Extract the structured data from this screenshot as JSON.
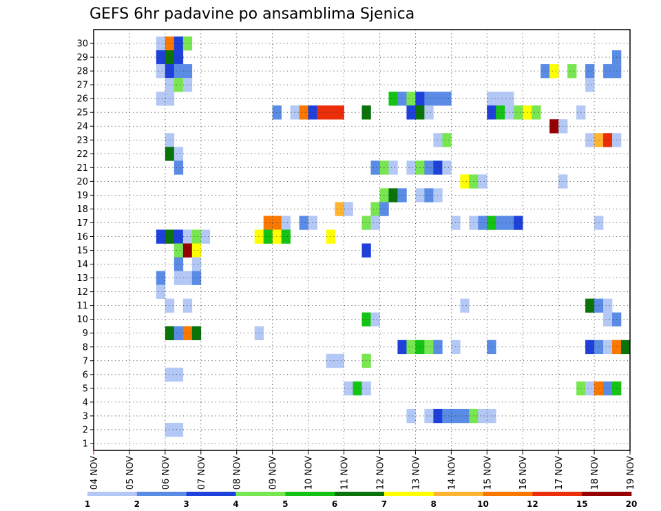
{
  "chart_data": {
    "type": "heatmap",
    "title": "GEFS 6hr padavine po ansamblima Sjenica",
    "xlabel": "",
    "ylabel": "",
    "grid": true,
    "legend_placement": "bottom",
    "x_ticks": [
      "04 NOV",
      "05 NOV",
      "06 NOV",
      "07 NOV",
      "08 NOV",
      "09 NOV",
      "10 NOV",
      "11 NOV",
      "12 NOV",
      "13 NOV",
      "14 NOV",
      "15 NOV",
      "16 NOV",
      "17 NOV",
      "18 NOV",
      "19 NOV"
    ],
    "y_ticks": [
      "1",
      "2",
      "3",
      "4",
      "5",
      "6",
      "7",
      "8",
      "9",
      "10",
      "11",
      "12",
      "13",
      "14",
      "15",
      "16",
      "17",
      "18",
      "19",
      "20",
      "21",
      "22",
      "23",
      "24",
      "25",
      "26",
      "27",
      "28",
      "29",
      "30"
    ],
    "steps_per_day": 4,
    "step_hours": 6,
    "colorbar": {
      "labels": [
        "1",
        "2",
        "3",
        "4",
        "5",
        "6",
        "7",
        "8",
        "10",
        "12",
        "15",
        "20"
      ],
      "colors": [
        "#b4c8f5",
        "#5a8ce6",
        "#1e41dc",
        "#78e650",
        "#14c314",
        "#0a730a",
        "#ffff00",
        "#ffb432",
        "#fa7800",
        "#eb2d0a",
        "#960000"
      ]
    },
    "cells": [
      {
        "m": 30,
        "s": 8,
        "c": 1
      },
      {
        "m": 30,
        "s": 9,
        "c": 9
      },
      {
        "m": 30,
        "s": 10,
        "c": 3
      },
      {
        "m": 30,
        "s": 11,
        "c": 4
      },
      {
        "m": 29,
        "s": 8,
        "c": 3
      },
      {
        "m": 29,
        "s": 9,
        "c": 6
      },
      {
        "m": 29,
        "s": 10,
        "c": 3
      },
      {
        "m": 29,
        "s": 59,
        "c": 2
      },
      {
        "m": 28,
        "s": 8,
        "c": 1
      },
      {
        "m": 28,
        "s": 9,
        "c": 3
      },
      {
        "m": 28,
        "s": 10,
        "c": 2
      },
      {
        "m": 28,
        "s": 11,
        "c": 2
      },
      {
        "m": 28,
        "s": 51,
        "c": 2
      },
      {
        "m": 28,
        "s": 52,
        "c": 7
      },
      {
        "m": 28,
        "s": 54,
        "c": 4
      },
      {
        "m": 28,
        "s": 56,
        "c": 2
      },
      {
        "m": 28,
        "s": 58,
        "c": 2
      },
      {
        "m": 28,
        "s": 59,
        "c": 2
      },
      {
        "m": 27,
        "s": 9,
        "c": 1
      },
      {
        "m": 27,
        "s": 10,
        "c": 4
      },
      {
        "m": 27,
        "s": 11,
        "c": 1
      },
      {
        "m": 27,
        "s": 56,
        "c": 1
      },
      {
        "m": 26,
        "s": 8,
        "c": 1
      },
      {
        "m": 26,
        "s": 9,
        "c": 1
      },
      {
        "m": 26,
        "s": 34,
        "c": 5
      },
      {
        "m": 26,
        "s": 35,
        "c": 2
      },
      {
        "m": 26,
        "s": 36,
        "c": 4
      },
      {
        "m": 26,
        "s": 37,
        "c": 3
      },
      {
        "m": 26,
        "s": 38,
        "c": 2
      },
      {
        "m": 26,
        "s": 39,
        "c": 2
      },
      {
        "m": 26,
        "s": 40,
        "c": 2
      },
      {
        "m": 26,
        "s": 45,
        "c": 1
      },
      {
        "m": 26,
        "s": 46,
        "c": 1
      },
      {
        "m": 26,
        "s": 47,
        "c": 1
      },
      {
        "m": 25,
        "s": 21,
        "c": 2
      },
      {
        "m": 25,
        "s": 23,
        "c": 1
      },
      {
        "m": 25,
        "s": 24,
        "c": 9
      },
      {
        "m": 25,
        "s": 25,
        "c": 3
      },
      {
        "m": 25,
        "s": 26,
        "c": 10
      },
      {
        "m": 25,
        "s": 27,
        "c": 10
      },
      {
        "m": 25,
        "s": 28,
        "c": 10
      },
      {
        "m": 25,
        "s": 31,
        "c": 6
      },
      {
        "m": 25,
        "s": 36,
        "c": 3
      },
      {
        "m": 25,
        "s": 37,
        "c": 6
      },
      {
        "m": 25,
        "s": 38,
        "c": 1
      },
      {
        "m": 25,
        "s": 45,
        "c": 3
      },
      {
        "m": 25,
        "s": 46,
        "c": 5
      },
      {
        "m": 25,
        "s": 47,
        "c": 1
      },
      {
        "m": 25,
        "s": 48,
        "c": 4
      },
      {
        "m": 25,
        "s": 49,
        "c": 7
      },
      {
        "m": 25,
        "s": 50,
        "c": 4
      },
      {
        "m": 25,
        "s": 55,
        "c": 1
      },
      {
        "m": 24,
        "s": 52,
        "c": 11
      },
      {
        "m": 24,
        "s": 53,
        "c": 1
      },
      {
        "m": 23,
        "s": 9,
        "c": 1
      },
      {
        "m": 23,
        "s": 39,
        "c": 1
      },
      {
        "m": 23,
        "s": 40,
        "c": 4
      },
      {
        "m": 23,
        "s": 56,
        "c": 1
      },
      {
        "m": 23,
        "s": 57,
        "c": 8
      },
      {
        "m": 23,
        "s": 58,
        "c": 10
      },
      {
        "m": 23,
        "s": 59,
        "c": 1
      },
      {
        "m": 22,
        "s": 9,
        "c": 6
      },
      {
        "m": 22,
        "s": 10,
        "c": 1
      },
      {
        "m": 21,
        "s": 10,
        "c": 2
      },
      {
        "m": 21,
        "s": 32,
        "c": 2
      },
      {
        "m": 21,
        "s": 33,
        "c": 4
      },
      {
        "m": 21,
        "s": 34,
        "c": 1
      },
      {
        "m": 21,
        "s": 36,
        "c": 1
      },
      {
        "m": 21,
        "s": 37,
        "c": 4
      },
      {
        "m": 21,
        "s": 38,
        "c": 2
      },
      {
        "m": 21,
        "s": 39,
        "c": 3
      },
      {
        "m": 21,
        "s": 40,
        "c": 1
      },
      {
        "m": 20,
        "s": 42,
        "c": 7
      },
      {
        "m": 20,
        "s": 43,
        "c": 4
      },
      {
        "m": 20,
        "s": 44,
        "c": 1
      },
      {
        "m": 20,
        "s": 53,
        "c": 1
      },
      {
        "m": 19,
        "s": 33,
        "c": 4
      },
      {
        "m": 19,
        "s": 34,
        "c": 6
      },
      {
        "m": 19,
        "s": 35,
        "c": 2
      },
      {
        "m": 19,
        "s": 37,
        "c": 1
      },
      {
        "m": 19,
        "s": 38,
        "c": 2
      },
      {
        "m": 19,
        "s": 39,
        "c": 1
      },
      {
        "m": 18,
        "s": 28,
        "c": 8
      },
      {
        "m": 18,
        "s": 29,
        "c": 1
      },
      {
        "m": 18,
        "s": 32,
        "c": 4
      },
      {
        "m": 18,
        "s": 33,
        "c": 2
      },
      {
        "m": 17,
        "s": 20,
        "c": 9
      },
      {
        "m": 17,
        "s": 21,
        "c": 9
      },
      {
        "m": 17,
        "s": 22,
        "c": 1
      },
      {
        "m": 17,
        "s": 24,
        "c": 2
      },
      {
        "m": 17,
        "s": 25,
        "c": 1
      },
      {
        "m": 17,
        "s": 31,
        "c": 4
      },
      {
        "m": 17,
        "s": 32,
        "c": 1
      },
      {
        "m": 17,
        "s": 41,
        "c": 1
      },
      {
        "m": 17,
        "s": 43,
        "c": 1
      },
      {
        "m": 17,
        "s": 44,
        "c": 2
      },
      {
        "m": 17,
        "s": 45,
        "c": 5
      },
      {
        "m": 17,
        "s": 46,
        "c": 2
      },
      {
        "m": 17,
        "s": 47,
        "c": 2
      },
      {
        "m": 17,
        "s": 48,
        "c": 3
      },
      {
        "m": 17,
        "s": 57,
        "c": 1
      },
      {
        "m": 16,
        "s": 8,
        "c": 3
      },
      {
        "m": 16,
        "s": 9,
        "c": 6
      },
      {
        "m": 16,
        "s": 10,
        "c": 3
      },
      {
        "m": 16,
        "s": 11,
        "c": 1
      },
      {
        "m": 16,
        "s": 12,
        "c": 4
      },
      {
        "m": 16,
        "s": 13,
        "c": 1
      },
      {
        "m": 16,
        "s": 19,
        "c": 7
      },
      {
        "m": 16,
        "s": 20,
        "c": 5
      },
      {
        "m": 16,
        "s": 21,
        "c": 7
      },
      {
        "m": 16,
        "s": 22,
        "c": 5
      },
      {
        "m": 16,
        "s": 27,
        "c": 7
      },
      {
        "m": 15,
        "s": 10,
        "c": 4
      },
      {
        "m": 15,
        "s": 11,
        "c": 11
      },
      {
        "m": 15,
        "s": 12,
        "c": 7
      },
      {
        "m": 15,
        "s": 31,
        "c": 3
      },
      {
        "m": 14,
        "s": 10,
        "c": 2
      },
      {
        "m": 14,
        "s": 12,
        "c": 1
      },
      {
        "m": 13,
        "s": 8,
        "c": 2
      },
      {
        "m": 13,
        "s": 10,
        "c": 1
      },
      {
        "m": 13,
        "s": 11,
        "c": 1
      },
      {
        "m": 13,
        "s": 12,
        "c": 2
      },
      {
        "m": 12,
        "s": 8,
        "c": 1
      },
      {
        "m": 11,
        "s": 9,
        "c": 1
      },
      {
        "m": 11,
        "s": 11,
        "c": 1
      },
      {
        "m": 11,
        "s": 42,
        "c": 1
      },
      {
        "m": 11,
        "s": 56,
        "c": 6
      },
      {
        "m": 11,
        "s": 57,
        "c": 2
      },
      {
        "m": 11,
        "s": 58,
        "c": 1
      },
      {
        "m": 10,
        "s": 31,
        "c": 5
      },
      {
        "m": 10,
        "s": 32,
        "c": 1
      },
      {
        "m": 10,
        "s": 58,
        "c": 1
      },
      {
        "m": 10,
        "s": 59,
        "c": 2
      },
      {
        "m": 9,
        "s": 9,
        "c": 6
      },
      {
        "m": 9,
        "s": 10,
        "c": 2
      },
      {
        "m": 9,
        "s": 11,
        "c": 9
      },
      {
        "m": 9,
        "s": 12,
        "c": 6
      },
      {
        "m": 9,
        "s": 19,
        "c": 1
      },
      {
        "m": 8,
        "s": 35,
        "c": 3
      },
      {
        "m": 8,
        "s": 36,
        "c": 4
      },
      {
        "m": 8,
        "s": 37,
        "c": 5
      },
      {
        "m": 8,
        "s": 38,
        "c": 4
      },
      {
        "m": 8,
        "s": 39,
        "c": 2
      },
      {
        "m": 8,
        "s": 41,
        "c": 1
      },
      {
        "m": 8,
        "s": 45,
        "c": 2
      },
      {
        "m": 8,
        "s": 56,
        "c": 3
      },
      {
        "m": 8,
        "s": 57,
        "c": 2
      },
      {
        "m": 8,
        "s": 58,
        "c": 1
      },
      {
        "m": 8,
        "s": 59,
        "c": 9
      },
      {
        "m": 8,
        "s": 60,
        "c": 6
      },
      {
        "m": 7,
        "s": 27,
        "c": 1
      },
      {
        "m": 7,
        "s": 28,
        "c": 1
      },
      {
        "m": 7,
        "s": 31,
        "c": 4
      },
      {
        "m": 6,
        "s": 9,
        "c": 1
      },
      {
        "m": 6,
        "s": 10,
        "c": 1
      },
      {
        "m": 5,
        "s": 29,
        "c": 1
      },
      {
        "m": 5,
        "s": 30,
        "c": 5
      },
      {
        "m": 5,
        "s": 31,
        "c": 1
      },
      {
        "m": 5,
        "s": 55,
        "c": 4
      },
      {
        "m": 5,
        "s": 56,
        "c": 1
      },
      {
        "m": 5,
        "s": 57,
        "c": 9
      },
      {
        "m": 5,
        "s": 58,
        "c": 2
      },
      {
        "m": 5,
        "s": 59,
        "c": 5
      },
      {
        "m": 3,
        "s": 36,
        "c": 1
      },
      {
        "m": 3,
        "s": 38,
        "c": 1
      },
      {
        "m": 3,
        "s": 39,
        "c": 3
      },
      {
        "m": 3,
        "s": 40,
        "c": 2
      },
      {
        "m": 3,
        "s": 41,
        "c": 2
      },
      {
        "m": 3,
        "s": 42,
        "c": 2
      },
      {
        "m": 3,
        "s": 43,
        "c": 4
      },
      {
        "m": 3,
        "s": 44,
        "c": 1
      },
      {
        "m": 3,
        "s": 45,
        "c": 1
      },
      {
        "m": 2,
        "s": 9,
        "c": 1
      },
      {
        "m": 2,
        "s": 10,
        "c": 1
      }
    ]
  }
}
